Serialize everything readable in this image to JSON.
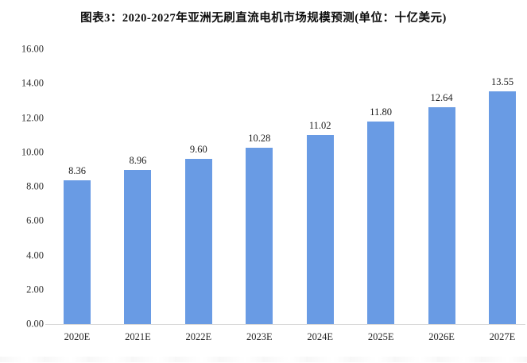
{
  "title": "图表3：2020-2027年亚洲无刷直流电机市场规模预测(单位：十亿美元)",
  "chart_data": {
    "type": "bar",
    "title": "图表3：2020-2027年亚洲无刷直流电机市场规模预测(单位：十亿美元)",
    "categories": [
      "2020E",
      "2021E",
      "2022E",
      "2023E",
      "2024E",
      "2025E",
      "2026E",
      "2027E"
    ],
    "values": [
      8.36,
      8.96,
      9.6,
      10.28,
      11.02,
      11.8,
      12.64,
      13.55
    ],
    "value_labels": [
      "8.36",
      "8.96",
      "9.60",
      "10.28",
      "11.02",
      "11.80",
      "12.64",
      "13.55"
    ],
    "xlabel": "",
    "ylabel": "",
    "ylim": [
      0,
      16
    ],
    "ytick_values": [
      0,
      2,
      4,
      6,
      8,
      10,
      12,
      14,
      16
    ],
    "ytick_labels": [
      "0.00",
      "2.00",
      "4.00",
      "6.00",
      "8.00",
      "10.00",
      "12.00",
      "14.00",
      "16.00"
    ],
    "grid": false,
    "legend_position": "none",
    "bar_color": "#699be4",
    "axis_line_color": "#d9d9d9",
    "text_color": "#262626",
    "unit": "十亿美元"
  }
}
